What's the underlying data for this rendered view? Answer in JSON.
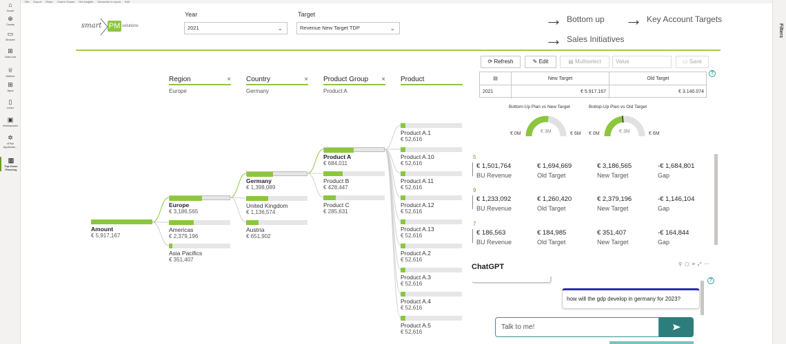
{
  "leftnav": {
    "items": [
      {
        "label": "Home",
        "icon": "home-icon",
        "glyph": "⌂"
      },
      {
        "label": "Create",
        "icon": "plus-icon",
        "glyph": "⊕"
      },
      {
        "label": "Browse",
        "icon": "folder-icon",
        "glyph": "▭"
      },
      {
        "label": "Data hub",
        "icon": "datahub-icon",
        "glyph": "⊞"
      },
      {
        "label": "Metrics",
        "icon": "trophy-icon",
        "glyph": "♕"
      },
      {
        "label": "Apps",
        "icon": "apps-icon",
        "glyph": "⊞"
      },
      {
        "label": "Learn",
        "icon": "book-icon",
        "glyph": "▯"
      },
      {
        "label": "Workspaces",
        "icon": "workspaces-icon",
        "glyph": "▣"
      },
      {
        "label": "xPNb Applicatio...",
        "icon": "app-icon",
        "glyph": "✲"
      },
      {
        "label": "Top-Down Planning",
        "icon": "report-icon",
        "glyph": "▥"
      }
    ]
  },
  "topstrip": {
    "items": [
      "File",
      "Export",
      "Share",
      "Chat in Teams",
      "Get insights",
      "Subscribe to report",
      "Edit"
    ]
  },
  "filters_pane": {
    "label": "Filters"
  },
  "logo": {
    "smart": "smart",
    "pm": "PM",
    "solutions": "solutions"
  },
  "slicers": {
    "year": {
      "label": "Year",
      "value": "2021"
    },
    "target": {
      "label": "Target",
      "value": "Revenue New Target TDP"
    }
  },
  "nav_links": {
    "bottom_up": "Bottom up",
    "key_account": "Key Account Targets",
    "sales_initiatives": "Sales Initiatives"
  },
  "toolbar": {
    "refresh": "Refresh",
    "edit": "Edit",
    "multiselect": "Multiselect",
    "value_placeholder": "Value",
    "save": "Save"
  },
  "target_table": {
    "headers": [
      "New Target",
      "Old Target"
    ],
    "rows": [
      {
        "year": "2021",
        "new_target": "€ 5.917.167",
        "old_target": "€ 3.140.074"
      }
    ]
  },
  "gauges": [
    {
      "title": "Bottom-Up Plan vs New Target",
      "min": "€ 0M",
      "mid": "€ 3M",
      "max": "€ 6M",
      "fill": 0.54
    },
    {
      "title": "Bottop-Up Plan vs Old Target",
      "min": "€ 0M",
      "mid": "€ 3M",
      "max": "€ 6M",
      "fill": 0.46
    }
  ],
  "tree": {
    "columns": [
      {
        "name": "Region",
        "selection": "Europe"
      },
      {
        "name": "Country",
        "selection": "Germany"
      },
      {
        "name": "Product Group",
        "selection": "Product A"
      },
      {
        "name": "Product",
        "selection": ""
      }
    ],
    "root": {
      "name": "Amount",
      "value": "€ 5,917,167"
    },
    "regions": [
      {
        "name": "Europe",
        "value": "€ 3,186,565",
        "fill": 0.54,
        "selected": true
      },
      {
        "name": "Americas",
        "value": "€ 2,379,196",
        "fill": 0.4,
        "selected": false
      },
      {
        "name": "Asia Pacifics",
        "value": "€ 351,407",
        "fill": 0.06,
        "selected": false
      }
    ],
    "countries": [
      {
        "name": "Germany",
        "value": "€ 1,398,089",
        "fill": 0.44,
        "selected": true
      },
      {
        "name": "United Kingdom",
        "value": "€ 1,136,574",
        "fill": 0.36,
        "selected": false
      },
      {
        "name": "Austria",
        "value": "€ 651,902",
        "fill": 0.2,
        "selected": false
      }
    ],
    "product_groups": [
      {
        "name": "Product A",
        "value": "€ 684,011",
        "fill": 0.49,
        "selected": true
      },
      {
        "name": "Product B",
        "value": "€ 428,447",
        "fill": 0.31,
        "selected": false
      },
      {
        "name": "Product C",
        "value": "€ 285,631",
        "fill": 0.2,
        "selected": false
      }
    ],
    "products": [
      {
        "name": "Product A.1",
        "value": "€ 52,616",
        "fill": 0.08
      },
      {
        "name": "Product A.10",
        "value": "€ 52,616",
        "fill": 0.08
      },
      {
        "name": "Product A.11",
        "value": "€ 52,616",
        "fill": 0.08
      },
      {
        "name": "Product A.12",
        "value": "€ 52,616",
        "fill": 0.08
      },
      {
        "name": "Product A.13",
        "value": "€ 52,616",
        "fill": 0.08
      },
      {
        "name": "Product A.2",
        "value": "€ 52,616",
        "fill": 0.08
      },
      {
        "name": "Product A.3",
        "value": "€ 52,616",
        "fill": 0.08
      },
      {
        "name": "Product A.4",
        "value": "€ 52,616",
        "fill": 0.08
      },
      {
        "name": "Product A.5",
        "value": "€ 52,616",
        "fill": 0.08
      }
    ]
  },
  "kpi_rows": [
    {
      "num": "5",
      "bu_revenue": "€ 1,501,764",
      "old_target": "€ 1,694,669",
      "new_target": "€ 3,186,565",
      "gap": "-€ 1,684,801"
    },
    {
      "num": "9",
      "bu_revenue": "€ 1,233,092",
      "old_target": "€ 1,260,420",
      "new_target": "€ 2,379,196",
      "gap": "-€ 1,146,104"
    },
    {
      "num": "7",
      "bu_revenue": "€ 186,563",
      "old_target": "€ 184,985",
      "new_target": "€ 351,407",
      "gap": "-€ 164,844"
    }
  ],
  "kpi_labels": {
    "bu_revenue": "BU Revenue",
    "old_target": "Old Target",
    "new_target": "New Target",
    "gap": "Gap"
  },
  "chat": {
    "title": "ChatGPT",
    "user_message": "how will the gdp develop in germany for 2023?",
    "input_placeholder": "Talk to me!",
    "help": "?"
  },
  "colors": {
    "accent_green": "#8cc63f",
    "teal": "#2e7d7d",
    "user_bubble_border": "#2c2cb0"
  }
}
